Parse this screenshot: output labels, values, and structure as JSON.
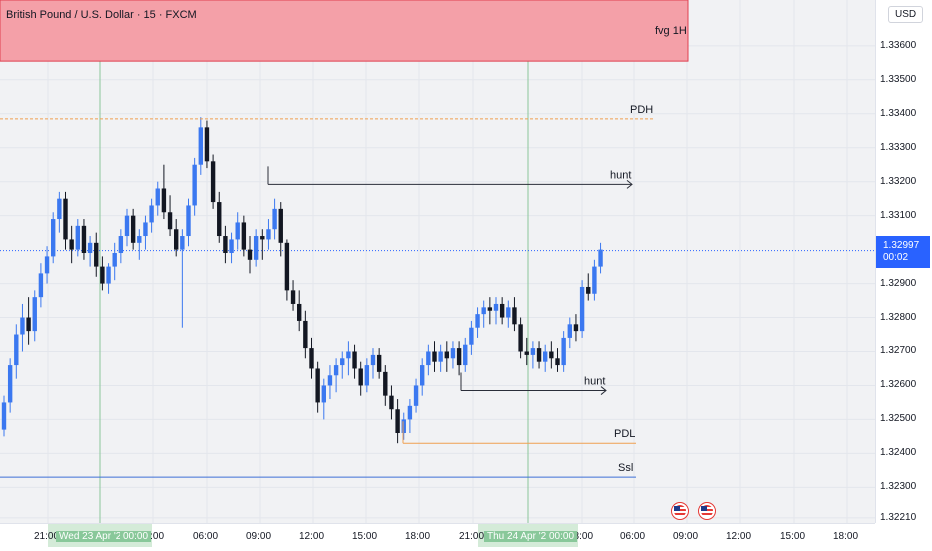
{
  "header": {
    "symbol_title": "British Pound / U.S. Dollar · 15 · FXCM",
    "currency": "USD"
  },
  "colors": {
    "bull": "#3b78f0",
    "bear": "#131722",
    "fvg_fill": "#f4a0a8",
    "fvg_border": "#e04050",
    "pdh_line": "#f0a050",
    "pdl_line": "#f0a050",
    "hunt_line": "#2a2e39",
    "ssl_line": "#3d6fd6",
    "last_price_bg": "#2962ff",
    "session_line": "#8cc79a"
  },
  "last_price": {
    "value": "1.32997",
    "countdown": "00:02"
  },
  "events": [
    "us-flag-icon",
    "us-flag-icon"
  ],
  "chart_data": {
    "type": "candlestick",
    "title": "British Pound / U.S. Dollar · 15 · FXCM",
    "y_ticks": [
      "1.33600",
      "1.33500",
      "1.33400",
      "1.33300",
      "1.33200",
      "1.33100",
      "1.32900",
      "1.32800",
      "1.32700",
      "1.32600",
      "1.32500",
      "1.32400",
      "1.32300",
      "1.32210"
    ],
    "x_ticks": [
      "21:00",
      "03:00",
      "06:00",
      "09:00",
      "12:00",
      "15:00",
      "18:00",
      "21:00",
      "03:00",
      "06:00",
      "09:00",
      "12:00",
      "15:00",
      "18:00"
    ],
    "date_labels": [
      "Wed 23 Apr '25",
      "00:00",
      "Thu 24 Apr '25",
      "00:00"
    ],
    "ylim": [
      1.32195,
      1.33735
    ],
    "zones": [
      {
        "label": "fvg 1H",
        "top": 1.33735,
        "bottom": 1.33555
      }
    ],
    "lines": [
      {
        "label": "PDH",
        "price": 1.33385
      },
      {
        "label": "hunt",
        "price": 1.33192
      },
      {
        "label": "hunt",
        "price": 1.32585
      },
      {
        "label": "PDL",
        "price": 1.3243
      },
      {
        "label": "Ssl",
        "price": 1.3233
      }
    ],
    "candles": [
      [
        1.3247,
        1.3257,
        1.3245,
        1.3255
      ],
      [
        1.3255,
        1.3268,
        1.3252,
        1.3266
      ],
      [
        1.3266,
        1.3278,
        1.3262,
        1.3275
      ],
      [
        1.3275,
        1.3284,
        1.327,
        1.328
      ],
      [
        1.328,
        1.3286,
        1.3272,
        1.3276
      ],
      [
        1.3276,
        1.3288,
        1.3273,
        1.3286
      ],
      [
        1.3286,
        1.3296,
        1.3283,
        1.3293
      ],
      [
        1.3293,
        1.3301,
        1.329,
        1.3298
      ],
      [
        1.3298,
        1.3311,
        1.3296,
        1.3309
      ],
      [
        1.3309,
        1.3317,
        1.3305,
        1.3315
      ],
      [
        1.3315,
        1.3317,
        1.33,
        1.3303
      ],
      [
        1.3303,
        1.3307,
        1.3296,
        1.33
      ],
      [
        1.33,
        1.3309,
        1.3298,
        1.3307
      ],
      [
        1.3307,
        1.3309,
        1.3297,
        1.3299
      ],
      [
        1.3299,
        1.3304,
        1.3295,
        1.3302
      ],
      [
        1.3302,
        1.3305,
        1.3292,
        1.3295
      ],
      [
        1.3295,
        1.3298,
        1.3288,
        1.329
      ],
      [
        1.329,
        1.3296,
        1.3287,
        1.3295
      ],
      [
        1.3295,
        1.3302,
        1.3291,
        1.3299
      ],
      [
        1.3299,
        1.3306,
        1.3296,
        1.3304
      ],
      [
        1.3304,
        1.3312,
        1.3301,
        1.331
      ],
      [
        1.331,
        1.3312,
        1.33,
        1.3302
      ],
      [
        1.3302,
        1.3306,
        1.3297,
        1.3304
      ],
      [
        1.3304,
        1.331,
        1.33,
        1.3308
      ],
      [
        1.3308,
        1.3315,
        1.3305,
        1.3313
      ],
      [
        1.3313,
        1.332,
        1.331,
        1.3318
      ],
      [
        1.3318,
        1.3325,
        1.3309,
        1.3311
      ],
      [
        1.3311,
        1.3316,
        1.3304,
        1.3306
      ],
      [
        1.3306,
        1.3309,
        1.3298,
        1.33
      ],
      [
        1.33,
        1.3306,
        1.3277,
        1.3304
      ],
      [
        1.3304,
        1.3315,
        1.3301,
        1.3313
      ],
      [
        1.3313,
        1.3327,
        1.331,
        1.3325
      ],
      [
        1.3325,
        1.3339,
        1.3322,
        1.3336
      ],
      [
        1.3336,
        1.3338,
        1.3324,
        1.3326
      ],
      [
        1.3326,
        1.3328,
        1.3312,
        1.3314
      ],
      [
        1.3314,
        1.3317,
        1.3302,
        1.3304
      ],
      [
        1.3304,
        1.3307,
        1.3296,
        1.3299
      ],
      [
        1.3299,
        1.3305,
        1.3296,
        1.3303
      ],
      [
        1.3303,
        1.3311,
        1.33,
        1.3308
      ],
      [
        1.3308,
        1.331,
        1.3298,
        1.33
      ],
      [
        1.33,
        1.3304,
        1.3293,
        1.3297
      ],
      [
        1.3297,
        1.3306,
        1.3295,
        1.3304
      ],
      [
        1.3304,
        1.3306,
        1.3297,
        1.3303
      ],
      [
        1.3303,
        1.3309,
        1.33,
        1.3306
      ],
      [
        1.3306,
        1.3315,
        1.3303,
        1.3312
      ],
      [
        1.3312,
        1.3314,
        1.3298,
        1.3302
      ],
      [
        1.3302,
        1.3303,
        1.3285,
        1.3288
      ],
      [
        1.3288,
        1.3291,
        1.3282,
        1.3284
      ],
      [
        1.3284,
        1.3288,
        1.3276,
        1.3279
      ],
      [
        1.3279,
        1.3282,
        1.3268,
        1.3271
      ],
      [
        1.3271,
        1.3274,
        1.3262,
        1.3265
      ],
      [
        1.3265,
        1.3267,
        1.3252,
        1.3255
      ],
      [
        1.3255,
        1.3262,
        1.325,
        1.326
      ],
      [
        1.326,
        1.3266,
        1.3256,
        1.3263
      ],
      [
        1.3263,
        1.3268,
        1.3258,
        1.3266
      ],
      [
        1.3266,
        1.327,
        1.3262,
        1.3268
      ],
      [
        1.3268,
        1.3273,
        1.3263,
        1.327
      ],
      [
        1.327,
        1.3272,
        1.3262,
        1.3265
      ],
      [
        1.3265,
        1.3267,
        1.3257,
        1.326
      ],
      [
        1.326,
        1.3268,
        1.3258,
        1.3266
      ],
      [
        1.3266,
        1.3271,
        1.3262,
        1.3269
      ],
      [
        1.3269,
        1.3271,
        1.3262,
        1.3264
      ],
      [
        1.3264,
        1.3266,
        1.3254,
        1.3257
      ],
      [
        1.3257,
        1.326,
        1.325,
        1.3253
      ],
      [
        1.3253,
        1.3256,
        1.3243,
        1.3246
      ],
      [
        1.3246,
        1.3252,
        1.3244,
        1.325
      ],
      [
        1.325,
        1.3256,
        1.3246,
        1.3254
      ],
      [
        1.3254,
        1.3262,
        1.3252,
        1.326
      ],
      [
        1.326,
        1.3268,
        1.3257,
        1.3266
      ],
      [
        1.3266,
        1.3272,
        1.3263,
        1.327
      ],
      [
        1.327,
        1.3273,
        1.3264,
        1.3267
      ],
      [
        1.3267,
        1.3272,
        1.3264,
        1.327
      ],
      [
        1.327,
        1.3273,
        1.3264,
        1.3268
      ],
      [
        1.3268,
        1.3273,
        1.3265,
        1.3271
      ],
      [
        1.3271,
        1.3273,
        1.3263,
        1.3266
      ],
      [
        1.3266,
        1.3274,
        1.3264,
        1.3272
      ],
      [
        1.3272,
        1.3279,
        1.3269,
        1.3277
      ],
      [
        1.3277,
        1.3283,
        1.3274,
        1.3281
      ],
      [
        1.3281,
        1.3285,
        1.3277,
        1.3283
      ],
      [
        1.3283,
        1.3286,
        1.3278,
        1.3282
      ],
      [
        1.3282,
        1.3286,
        1.3278,
        1.3284
      ],
      [
        1.3284,
        1.3286,
        1.3278,
        1.328
      ],
      [
        1.328,
        1.3285,
        1.3277,
        1.3283
      ],
      [
        1.3283,
        1.3286,
        1.3276,
        1.3278
      ],
      [
        1.3278,
        1.328,
        1.3268,
        1.327
      ],
      [
        1.327,
        1.3274,
        1.3266,
        1.3269
      ],
      [
        1.3269,
        1.3273,
        1.3265,
        1.3271
      ],
      [
        1.3271,
        1.3273,
        1.3265,
        1.3267
      ],
      [
        1.3267,
        1.3272,
        1.3264,
        1.327
      ],
      [
        1.327,
        1.3273,
        1.3265,
        1.3268
      ],
      [
        1.3268,
        1.3271,
        1.3264,
        1.3266
      ],
      [
        1.3266,
        1.3276,
        1.3264,
        1.3274
      ],
      [
        1.3274,
        1.328,
        1.3271,
        1.3278
      ],
      [
        1.3278,
        1.3281,
        1.3273,
        1.3276
      ],
      [
        1.3276,
        1.3291,
        1.3274,
        1.3289
      ],
      [
        1.3289,
        1.3293,
        1.3285,
        1.3287
      ],
      [
        1.3287,
        1.3297,
        1.3285,
        1.3295
      ],
      [
        1.3295,
        1.3302,
        1.3293,
        1.33
      ]
    ]
  }
}
